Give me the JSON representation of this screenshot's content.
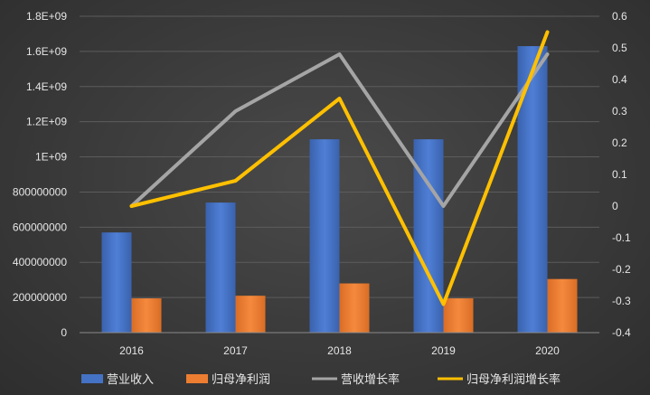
{
  "chart_data": {
    "type": "bar",
    "categories": [
      "2016",
      "2017",
      "2018",
      "2019",
      "2020"
    ],
    "series": [
      {
        "name": "营业收入",
        "type": "bar",
        "axis": "left",
        "color": "#4472C4",
        "values": [
          570000000,
          740000000,
          1100000000,
          1100000000,
          1630000000
        ]
      },
      {
        "name": "归母净利润",
        "type": "bar",
        "axis": "left",
        "color": "#ED7D31",
        "values": [
          195000000,
          210000000,
          280000000,
          195000000,
          305000000
        ]
      },
      {
        "name": "营收增长率",
        "type": "line",
        "axis": "right",
        "color": "#A5A5A5",
        "values": [
          0.0,
          0.3,
          0.48,
          0.0,
          0.48
        ]
      },
      {
        "name": "归母净利润增长率",
        "type": "line",
        "axis": "right",
        "color": "#FFC000",
        "values": [
          0.0,
          0.08,
          0.34,
          -0.31,
          0.55
        ]
      }
    ],
    "y_left": {
      "min": 0,
      "max": 1800000000,
      "ticks": [
        0,
        200000000,
        400000000,
        600000000,
        800000000,
        1000000000,
        1200000000,
        1400000000,
        1600000000,
        1800000000
      ],
      "tick_labels": [
        "0",
        "200000000",
        "400000000",
        "600000000",
        "800000000",
        "1E+09",
        "1.2E+09",
        "1.4E+09",
        "1.6E+09",
        "1.8E+09"
      ]
    },
    "y_right": {
      "min": -0.4,
      "max": 0.6,
      "ticks": [
        -0.4,
        -0.3,
        -0.2,
        -0.1,
        0,
        0.1,
        0.2,
        0.3,
        0.4,
        0.5,
        0.6
      ],
      "tick_labels": [
        "-0.4",
        "-0.3",
        "-0.2",
        "-0.1",
        "0",
        "0.1",
        "0.2",
        "0.3",
        "0.4",
        "0.5",
        "0.6"
      ]
    },
    "grid": true,
    "legend_position": "bottom"
  }
}
